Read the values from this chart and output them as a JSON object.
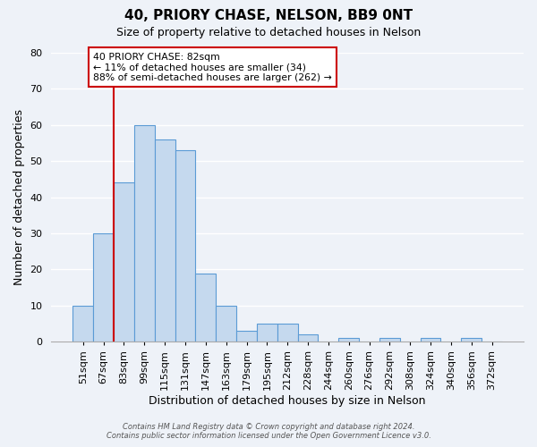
{
  "title": "40, PRIORY CHASE, NELSON, BB9 0NT",
  "subtitle": "Size of property relative to detached houses in Nelson",
  "xlabel": "Distribution of detached houses by size in Nelson",
  "ylabel": "Number of detached properties",
  "bin_labels": [
    "51sqm",
    "67sqm",
    "83sqm",
    "99sqm",
    "115sqm",
    "131sqm",
    "147sqm",
    "163sqm",
    "179sqm",
    "195sqm",
    "212sqm",
    "228sqm",
    "244sqm",
    "260sqm",
    "276sqm",
    "292sqm",
    "308sqm",
    "324sqm",
    "340sqm",
    "356sqm",
    "372sqm"
  ],
  "bar_heights": [
    10,
    30,
    44,
    60,
    56,
    53,
    19,
    10,
    3,
    5,
    5,
    2,
    0,
    1,
    0,
    1,
    0,
    1,
    0,
    1,
    0
  ],
  "bar_color": "#c5d9ee",
  "bar_edge_color": "#5b9bd5",
  "red_line_index": 2,
  "annotation_title": "40 PRIORY CHASE: 82sqm",
  "annotation_line1": "← 11% of detached houses are smaller (34)",
  "annotation_line2": "88% of semi-detached houses are larger (262) →",
  "annotation_box_color": "#ffffff",
  "annotation_border_color": "#cc0000",
  "red_line_color": "#cc0000",
  "ylim": [
    0,
    80
  ],
  "yticks": [
    0,
    10,
    20,
    30,
    40,
    50,
    60,
    70,
    80
  ],
  "footer_line1": "Contains HM Land Registry data © Crown copyright and database right 2024.",
  "footer_line2": "Contains public sector information licensed under the Open Government Licence v3.0.",
  "title_fontsize": 11,
  "subtitle_fontsize": 9,
  "xlabel_fontsize": 9,
  "ylabel_fontsize": 9,
  "tick_fontsize": 8,
  "background_color": "#eef2f8",
  "plot_background_color": "#eef2f8",
  "grid_color": "#ffffff"
}
